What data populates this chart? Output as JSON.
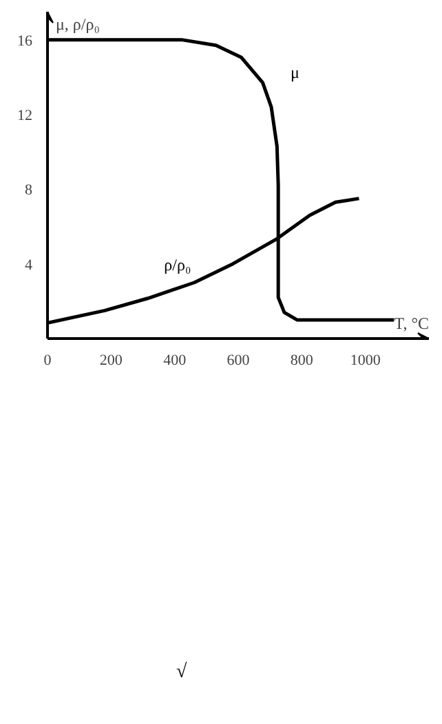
{
  "chart_data": {
    "type": "line",
    "xlabel": "T, °C",
    "ylabel": "μ, ρ/ρ₀",
    "xlim": [
      0,
      1200
    ],
    "ylim": [
      0,
      17.5
    ],
    "xticks": [
      0,
      200,
      400,
      600,
      800,
      1000
    ],
    "yticks": [
      4,
      8,
      12,
      16
    ],
    "grid": false,
    "annotations": [
      "√"
    ],
    "series": [
      {
        "name": "μ",
        "color": "#000000",
        "x": [
          0,
          422,
          530,
          610,
          677,
          704,
          722,
          726,
          726,
          745,
          785,
          1090
        ],
        "values": [
          16,
          16,
          15.7,
          15.05,
          13.7,
          12.4,
          10.3,
          8.2,
          2.2,
          1.4,
          1.0,
          1.0
        ]
      },
      {
        "name": "ρ/ρ₀",
        "color": "#000000",
        "x": [
          0,
          180,
          315,
          462,
          583,
          718,
          825,
          906,
          980
        ],
        "values": [
          0.84,
          1.5,
          2.15,
          3.0,
          4.0,
          5.3,
          6.6,
          7.3,
          7.5
        ]
      }
    ]
  }
}
